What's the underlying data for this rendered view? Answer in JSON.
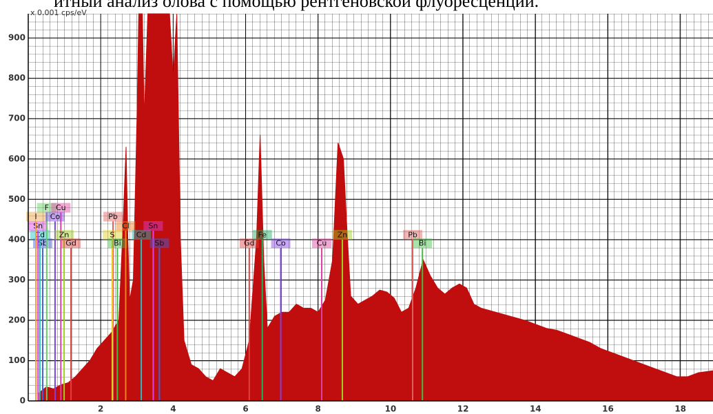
{
  "chart_data": {
    "type": "area",
    "title": "итный анализ олова с помощью рентгеновской флуоресценции.",
    "y_unit": "x 0.001 cps/eV",
    "color": "#c00d0d",
    "grid": true,
    "xlim": [
      0,
      18.9
    ],
    "ylim": [
      0,
      960
    ],
    "xticks": [
      2,
      4,
      6,
      8,
      10,
      12,
      14,
      16,
      18
    ],
    "yticks": [
      0,
      100,
      200,
      300,
      400,
      500,
      600,
      700,
      800,
      900
    ],
    "x": [
      0.3,
      0.5,
      0.7,
      0.9,
      1.1,
      1.3,
      1.5,
      1.7,
      1.9,
      2.1,
      2.3,
      2.5,
      2.6,
      2.7,
      2.75,
      2.8,
      2.9,
      3.0,
      3.05,
      3.15,
      3.2,
      3.3,
      3.5,
      3.7,
      3.9,
      4.0,
      4.1,
      4.2,
      4.3,
      4.5,
      4.7,
      4.9,
      5.1,
      5.3,
      5.5,
      5.7,
      5.9,
      6.1,
      6.3,
      6.4,
      6.5,
      6.6,
      6.8,
      7.0,
      7.2,
      7.4,
      7.6,
      7.8,
      8.0,
      8.2,
      8.4,
      8.55,
      8.7,
      8.8,
      8.9,
      9.1,
      9.3,
      9.5,
      9.7,
      9.9,
      10.1,
      10.3,
      10.5,
      10.7,
      10.9,
      11.1,
      11.3,
      11.5,
      11.7,
      11.9,
      12.1,
      12.3,
      12.5,
      12.7,
      12.9,
      13.1,
      13.3,
      13.5,
      13.7,
      14.0,
      14.3,
      14.6,
      14.9,
      15.2,
      15.5,
      15.8,
      16.1,
      16.4,
      16.7,
      17.0,
      17.3,
      17.6,
      17.9,
      18.2,
      18.5,
      18.9
    ],
    "values": [
      20,
      35,
      30,
      40,
      45,
      60,
      80,
      100,
      130,
      150,
      170,
      200,
      400,
      630,
      400,
      250,
      300,
      700,
      960,
      960,
      700,
      960,
      960,
      960,
      960,
      800,
      960,
      400,
      150,
      90,
      80,
      60,
      50,
      80,
      70,
      60,
      80,
      150,
      400,
      660,
      350,
      180,
      210,
      220,
      220,
      240,
      230,
      230,
      220,
      250,
      350,
      640,
      600,
      420,
      260,
      240,
      250,
      260,
      275,
      270,
      255,
      220,
      230,
      280,
      350,
      310,
      280,
      265,
      280,
      290,
      280,
      240,
      230,
      225,
      220,
      215,
      210,
      205,
      200,
      190,
      180,
      175,
      165,
      155,
      145,
      130,
      120,
      110,
      100,
      90,
      80,
      70,
      60,
      60,
      70,
      75
    ],
    "markers": [
      {
        "name": "Sb",
        "energy": 0.4,
        "height": 379,
        "color": "#4060e0"
      },
      {
        "name": "Cd",
        "energy": 0.32,
        "height": 400,
        "color": "#20c0c0"
      },
      {
        "name": "Sn",
        "energy": 0.27,
        "height": 422,
        "color": "#e040e0"
      },
      {
        "name": "I",
        "energy": 0.21,
        "height": 445,
        "color": "#f0a040"
      },
      {
        "name": "F",
        "energy": 0.51,
        "height": 467,
        "color": "#60d060"
      },
      {
        "name": "Cu",
        "energy": 0.9,
        "height": 467,
        "color": "#e040a0"
      },
      {
        "name": "Co",
        "energy": 0.74,
        "height": 445,
        "color": "#8040e0"
      },
      {
        "name": "Zn",
        "energy": 0.99,
        "height": 400,
        "color": "#a0d020"
      },
      {
        "name": "Gd",
        "energy": 1.18,
        "height": 379,
        "color": "#e04040"
      },
      {
        "name": "Pb",
        "energy": 2.34,
        "height": 445,
        "color": "#e06060"
      },
      {
        "name": "S",
        "energy": 2.32,
        "height": 400,
        "color": "#e0d020"
      },
      {
        "name": "Bi",
        "energy": 2.46,
        "height": 379,
        "color": "#40c040"
      },
      {
        "name": "Cl",
        "energy": 2.69,
        "height": 422,
        "color": "#f08020"
      },
      {
        "name": "Cd",
        "energy": 3.12,
        "height": 400,
        "color": "#20c0c0"
      },
      {
        "name": "Sn",
        "energy": 3.45,
        "height": 422,
        "color": "#e040e0"
      },
      {
        "name": "Sb",
        "energy": 3.62,
        "height": 379,
        "color": "#4060e0"
      },
      {
        "name": "Gd",
        "energy": 6.1,
        "height": 379,
        "color": "#e04040"
      },
      {
        "name": "Fe",
        "energy": 6.46,
        "height": 400,
        "color": "#20b060"
      },
      {
        "name": "Co",
        "energy": 6.97,
        "height": 379,
        "color": "#8040e0"
      },
      {
        "name": "Cu",
        "energy": 8.1,
        "height": 379,
        "color": "#e040a0"
      },
      {
        "name": "Zn",
        "energy": 8.67,
        "height": 400,
        "color": "#a0d020"
      },
      {
        "name": "Pb",
        "energy": 10.61,
        "height": 400,
        "color": "#e06060"
      },
      {
        "name": "Bi",
        "energy": 10.88,
        "height": 379,
        "color": "#40c040"
      }
    ]
  }
}
